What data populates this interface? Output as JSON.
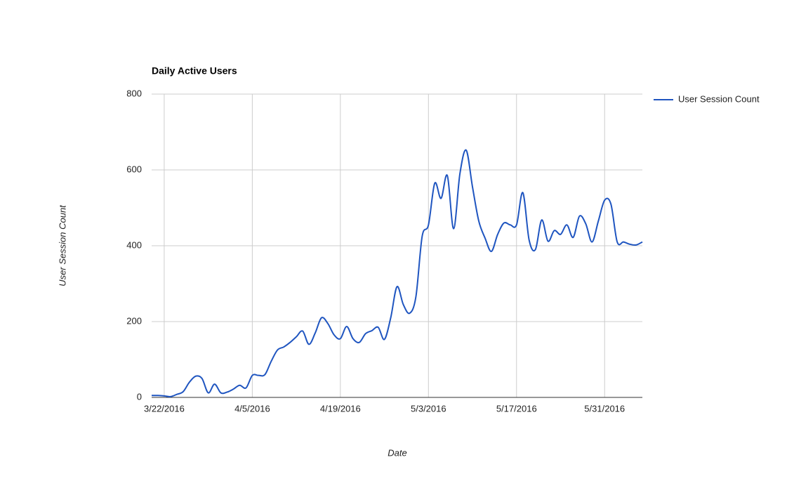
{
  "chart_data": {
    "type": "line",
    "title": "Daily Active Users",
    "x_label": "Date",
    "y_label": "User Session Count",
    "x": [
      "3/20/2016",
      "3/21/2016",
      "3/22/2016",
      "3/23/2016",
      "3/24/2016",
      "3/25/2016",
      "3/26/2016",
      "3/27/2016",
      "3/28/2016",
      "3/29/2016",
      "3/30/2016",
      "3/31/2016",
      "4/1/2016",
      "4/2/2016",
      "4/3/2016",
      "4/4/2016",
      "4/5/2016",
      "4/6/2016",
      "4/7/2016",
      "4/8/2016",
      "4/9/2016",
      "4/10/2016",
      "4/11/2016",
      "4/12/2016",
      "4/13/2016",
      "4/14/2016",
      "4/15/2016",
      "4/16/2016",
      "4/17/2016",
      "4/18/2016",
      "4/19/2016",
      "4/20/2016",
      "4/21/2016",
      "4/22/2016",
      "4/23/2016",
      "4/24/2016",
      "4/25/2016",
      "4/26/2016",
      "4/27/2016",
      "4/28/2016",
      "4/29/2016",
      "4/30/2016",
      "5/1/2016",
      "5/2/2016",
      "5/3/2016",
      "5/4/2016",
      "5/5/2016",
      "5/6/2016",
      "5/7/2016",
      "5/8/2016",
      "5/9/2016",
      "5/10/2016",
      "5/11/2016",
      "5/12/2016",
      "5/13/2016",
      "5/14/2016",
      "5/15/2016",
      "5/16/2016",
      "5/17/2016",
      "5/18/2016",
      "5/19/2016",
      "5/20/2016",
      "5/21/2016",
      "5/22/2016",
      "5/23/2016",
      "5/24/2016",
      "5/25/2016",
      "5/26/2016",
      "5/27/2016",
      "5/28/2016",
      "5/29/2016",
      "5/30/2016",
      "5/31/2016",
      "6/1/2016",
      "6/2/2016",
      "6/3/2016",
      "6/4/2016",
      "6/5/2016",
      "6/6/2016"
    ],
    "series": [
      {
        "name": "User Session Count",
        "color": "#1f55c0",
        "values": [
          5,
          5,
          4,
          2,
          8,
          15,
          40,
          56,
          50,
          12,
          35,
          12,
          14,
          22,
          32,
          25,
          58,
          58,
          60,
          95,
          125,
          133,
          145,
          160,
          175,
          140,
          170,
          210,
          195,
          165,
          155,
          187,
          155,
          145,
          168,
          176,
          185,
          153,
          210,
          292,
          245,
          222,
          265,
          425,
          455,
          565,
          525,
          585,
          445,
          590,
          652,
          555,
          465,
          420,
          385,
          430,
          460,
          455,
          455,
          540,
          415,
          390,
          468,
          412,
          440,
          430,
          455,
          422,
          478,
          458,
          410,
          465,
          520,
          510,
          410,
          410,
          404,
          402,
          410
        ]
      }
    ],
    "xlim": [
      "3/20/2016",
      "6/6/2016"
    ],
    "xticks": [
      "3/22/2016",
      "4/5/2016",
      "4/19/2016",
      "5/3/2016",
      "5/17/2016",
      "5/31/2016"
    ],
    "ylim": [
      0,
      800
    ],
    "yticks": [
      0,
      200,
      400,
      600,
      800
    ],
    "grid": true,
    "legend": "right"
  }
}
